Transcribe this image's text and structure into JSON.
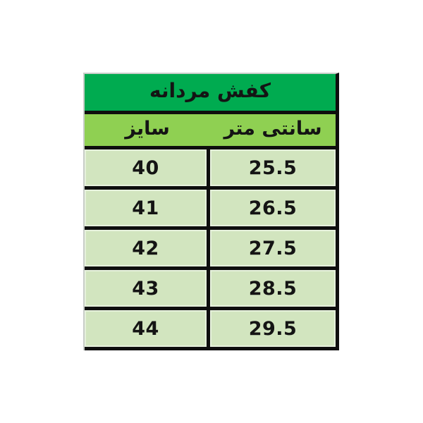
{
  "chart_data": {
    "type": "table",
    "title": "کفش مردانه",
    "columns": [
      "سایز",
      "سانتی متر"
    ],
    "rows": [
      [
        "40",
        "25.5"
      ],
      [
        "41",
        "26.5"
      ],
      [
        "42",
        "27.5"
      ],
      [
        "43",
        "28.5"
      ],
      [
        "44",
        "29.5"
      ]
    ],
    "layout_hints": {
      "title_row_merged": true,
      "header_row_no_column_divider": true,
      "grid": "thick black inner/right/bottom borders, thin gray top/left edge"
    }
  },
  "colors": {
    "title_bg": "#00ab50",
    "header_bg": "#8fd052",
    "cell_bg": "#d2e5bf",
    "border_dark": "#0e0e0e",
    "border_light": "#c9cdc9",
    "text": "#141414",
    "canvas_bg": "#ffffff"
  }
}
